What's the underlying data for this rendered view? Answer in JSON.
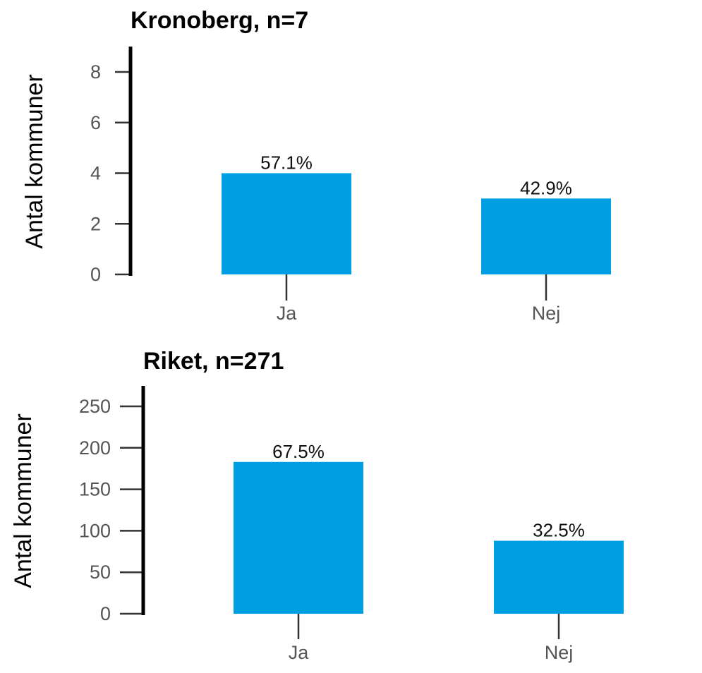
{
  "chart_data": [
    {
      "type": "bar",
      "title": "Kronoberg, n=7",
      "ylabel": "Antal kommuner",
      "xlabel": "",
      "categories": [
        "Ja",
        "Nej"
      ],
      "values": [
        4,
        3
      ],
      "data_labels": [
        "57.1%",
        "42.9%"
      ],
      "ylim": [
        0,
        9
      ],
      "yticks": [
        0,
        2,
        4,
        6,
        8
      ],
      "bar_color": "#009ee3",
      "grid": false
    },
    {
      "type": "bar",
      "title": "Riket, n=271",
      "ylabel": "Antal kommuner",
      "xlabel": "",
      "categories": [
        "Ja",
        "Nej"
      ],
      "values": [
        183,
        88
      ],
      "data_labels": [
        "67.5%",
        "32.5%"
      ],
      "ylim": [
        0,
        275
      ],
      "yticks": [
        0,
        50,
        100,
        150,
        200,
        250
      ],
      "bar_color": "#009ee3",
      "grid": false
    }
  ]
}
